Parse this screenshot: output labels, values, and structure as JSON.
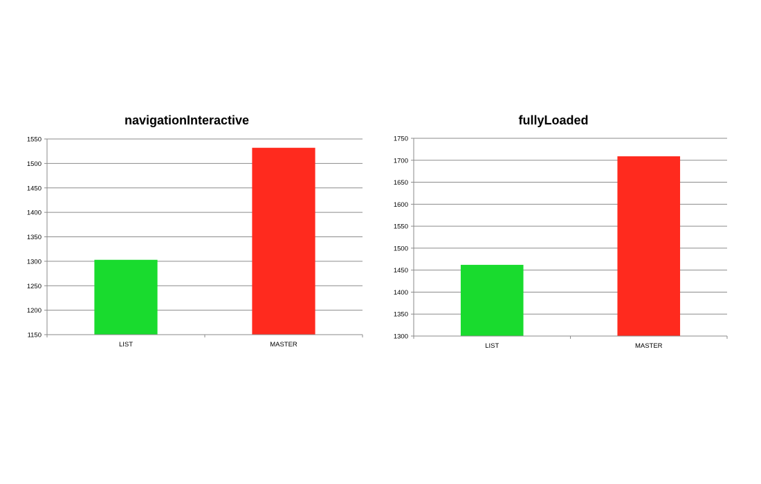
{
  "colors": {
    "list": "#19DB2E",
    "master": "#FF2A1E",
    "grid": "#8a8a8a"
  },
  "chart_data": [
    {
      "type": "bar",
      "title": "navigationInteractive",
      "categories": [
        "LIST",
        "MASTER"
      ],
      "values": [
        1303,
        1532
      ],
      "ylim": [
        1150,
        1550
      ],
      "yticks": [
        1150,
        1200,
        1250,
        1300,
        1350,
        1400,
        1450,
        1500,
        1550
      ],
      "xlabel": "",
      "ylabel": "",
      "grid": true
    },
    {
      "type": "bar",
      "title": "fullyLoaded",
      "categories": [
        "LIST",
        "MASTER"
      ],
      "values": [
        1462,
        1709
      ],
      "ylim": [
        1300,
        1750
      ],
      "yticks": [
        1300,
        1350,
        1400,
        1450,
        1500,
        1550,
        1600,
        1650,
        1700,
        1750
      ],
      "xlabel": "",
      "ylabel": "",
      "grid": true
    }
  ]
}
